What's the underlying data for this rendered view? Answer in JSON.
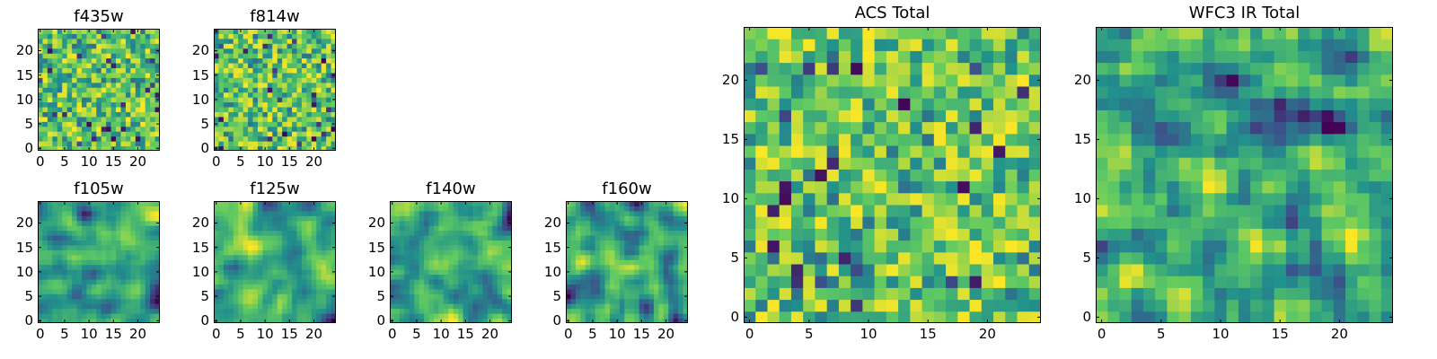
{
  "colormap": [
    "#440154",
    "#3b528b",
    "#21918c",
    "#5ec962",
    "#fde725"
  ],
  "chart_data": [
    {
      "type": "heatmap",
      "title": "f435w",
      "size": 25,
      "xticks": [
        0,
        5,
        10,
        15,
        20
      ],
      "yticks": [
        0,
        5,
        10,
        15,
        20
      ],
      "pattern": "noise",
      "seed": 11
    },
    {
      "type": "heatmap",
      "title": "f814w",
      "size": 25,
      "xticks": [
        0,
        5,
        10,
        15,
        20
      ],
      "yticks": [
        0,
        5,
        10,
        15,
        20
      ],
      "pattern": "noise",
      "seed": 23
    },
    {
      "type": "heatmap",
      "title": "f105w",
      "size": 25,
      "xticks": [
        0,
        5,
        10,
        15,
        20
      ],
      "yticks": [
        0,
        5,
        10,
        15,
        20
      ],
      "pattern": "smooth",
      "seed": 37
    },
    {
      "type": "heatmap",
      "title": "f125w",
      "size": 25,
      "xticks": [
        0,
        5,
        10,
        15,
        20
      ],
      "yticks": [
        0,
        5,
        10,
        15,
        20
      ],
      "pattern": "smooth",
      "seed": 41
    },
    {
      "type": "heatmap",
      "title": "f140w",
      "size": 25,
      "xticks": [
        0,
        5,
        10,
        15,
        20
      ],
      "yticks": [
        0,
        5,
        10,
        15,
        20
      ],
      "pattern": "smooth",
      "seed": 53
    },
    {
      "type": "heatmap",
      "title": "f160w",
      "size": 25,
      "xticks": [
        0,
        5,
        10,
        15,
        20
      ],
      "yticks": [
        0,
        5,
        10,
        15,
        20
      ],
      "pattern": "smooth",
      "seed": 67
    },
    {
      "type": "heatmap",
      "title": "ACS Total",
      "size": 25,
      "xticks": [
        0,
        5,
        10,
        15,
        20
      ],
      "yticks": [
        0,
        5,
        10,
        15,
        20
      ],
      "pattern": "noise",
      "seed": 79
    },
    {
      "type": "heatmap",
      "title": "WFC3 IR Total",
      "size": 25,
      "xticks": [
        0,
        5,
        10,
        15,
        20
      ],
      "yticks": [
        0,
        5,
        10,
        15,
        20
      ],
      "pattern": "mixed",
      "seed": 97
    }
  ]
}
